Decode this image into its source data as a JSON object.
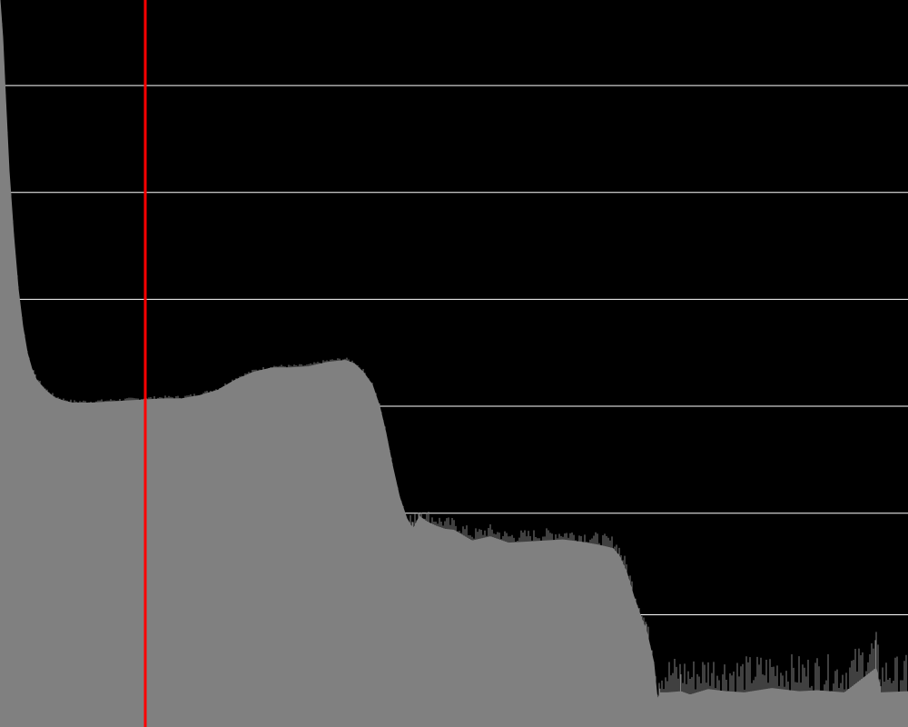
{
  "chart_data": {
    "type": "area",
    "title": "",
    "xlabel": "",
    "ylabel": "",
    "grid": true,
    "xlim": [
      0,
      1000
    ],
    "ylim": [
      0,
      6.8
    ],
    "gridlines_y": [
      1.05,
      2.0,
      3.0,
      4.0,
      5.0,
      6.0
    ],
    "marker_x": 160,
    "series": [
      {
        "values": [
          [
            0,
            6.8
          ],
          [
            3,
            6.45
          ],
          [
            6,
            5.9
          ],
          [
            10,
            5.2
          ],
          [
            15,
            4.6
          ],
          [
            20,
            4.1
          ],
          [
            25,
            3.75
          ],
          [
            30,
            3.5
          ],
          [
            35,
            3.35
          ],
          [
            40,
            3.25
          ],
          [
            50,
            3.15
          ],
          [
            60,
            3.08
          ],
          [
            70,
            3.05
          ],
          [
            80,
            3.03
          ],
          [
            100,
            3.03
          ],
          [
            120,
            3.04
          ],
          [
            140,
            3.05
          ],
          [
            160,
            3.06
          ],
          [
            180,
            3.07
          ],
          [
            200,
            3.07
          ],
          [
            220,
            3.1
          ],
          [
            240,
            3.15
          ],
          [
            260,
            3.25
          ],
          [
            280,
            3.32
          ],
          [
            300,
            3.36
          ],
          [
            320,
            3.36
          ],
          [
            340,
            3.37
          ],
          [
            360,
            3.41
          ],
          [
            380,
            3.43
          ],
          [
            390,
            3.4
          ],
          [
            400,
            3.32
          ],
          [
            410,
            3.2
          ],
          [
            418,
            3.0
          ],
          [
            425,
            2.75
          ],
          [
            432,
            2.45
          ],
          [
            440,
            2.15
          ],
          [
            448,
            1.95
          ],
          [
            455,
            1.85
          ],
          [
            462,
            1.97
          ],
          [
            470,
            1.92
          ],
          [
            480,
            1.88
          ],
          [
            490,
            1.85
          ],
          [
            500,
            1.84
          ],
          [
            520,
            1.74
          ],
          [
            540,
            1.78
          ],
          [
            560,
            1.72
          ],
          [
            580,
            1.73
          ],
          [
            600,
            1.74
          ],
          [
            620,
            1.75
          ],
          [
            640,
            1.73
          ],
          [
            660,
            1.7
          ],
          [
            675,
            1.67
          ],
          [
            682,
            1.6
          ],
          [
            690,
            1.45
          ],
          [
            698,
            1.22
          ],
          [
            705,
            1.05
          ],
          [
            712,
            0.9
          ],
          [
            720,
            0.6
          ],
          [
            724,
            0.25
          ],
          [
            727,
            0.32
          ],
          [
            735,
            0.32
          ],
          [
            750,
            0.33
          ],
          [
            760,
            0.3
          ],
          [
            780,
            0.35
          ],
          [
            800,
            0.33
          ],
          [
            820,
            0.32
          ],
          [
            850,
            0.36
          ],
          [
            880,
            0.33
          ],
          [
            900,
            0.34
          ],
          [
            930,
            0.32
          ],
          [
            965,
            0.55
          ],
          [
            970,
            0.32
          ],
          [
            1000,
            0.33
          ]
        ]
      }
    ],
    "colors": {
      "background": "#000000",
      "fill": "#808080",
      "gridline": "#ffffff",
      "marker": "#ff0000"
    }
  }
}
